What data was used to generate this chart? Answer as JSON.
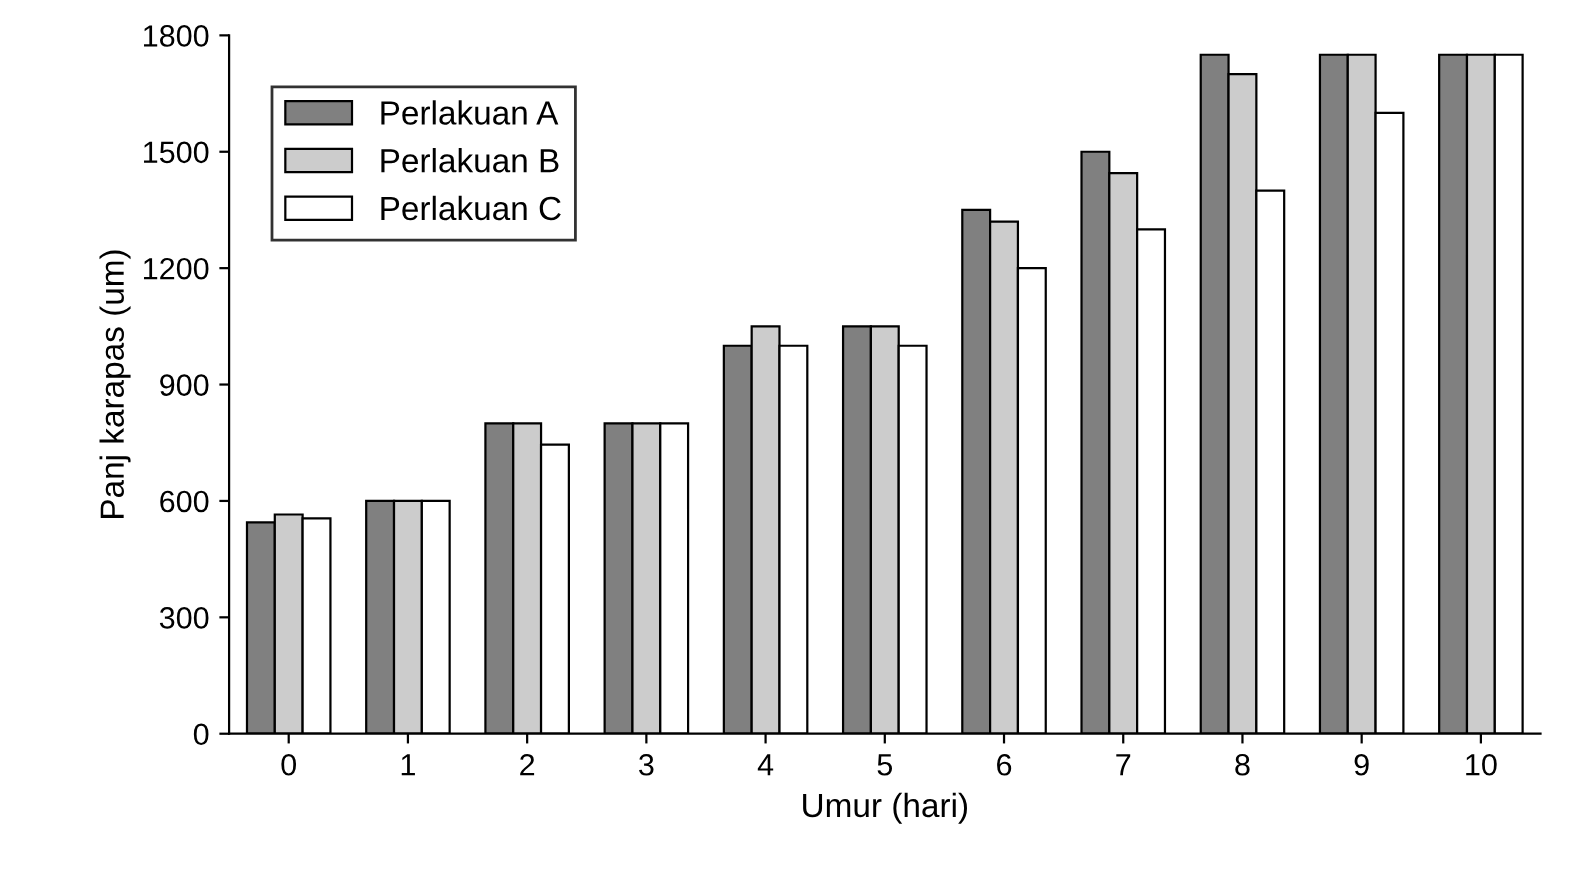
{
  "chart_data": {
    "type": "bar",
    "xlabel": "Umur (hari)",
    "ylabel": "Panj karapas (um)",
    "categories": [
      "0",
      "1",
      "2",
      "3",
      "4",
      "5",
      "6",
      "7",
      "8",
      "9",
      "10"
    ],
    "series": [
      {
        "name": "Perlakuan A",
        "color": "#808080",
        "values": [
          545,
          600,
          800,
          800,
          1000,
          1050,
          1350,
          1500,
          1750,
          1750,
          1750
        ]
      },
      {
        "name": "Perlakuan B",
        "color": "#cccccc",
        "values": [
          565,
          600,
          800,
          800,
          1050,
          1050,
          1320,
          1445,
          1700,
          1750,
          1750
        ]
      },
      {
        "name": "Perlakuan C",
        "color": "#ffffff",
        "values": [
          555,
          600,
          745,
          800,
          1000,
          1000,
          1200,
          1300,
          1400,
          1600,
          1750
        ]
      }
    ],
    "ylim": [
      0,
      1800
    ],
    "yticks": [
      0,
      300,
      600,
      900,
      1200,
      1500,
      1800
    ],
    "grid": false,
    "legend": "top left"
  }
}
